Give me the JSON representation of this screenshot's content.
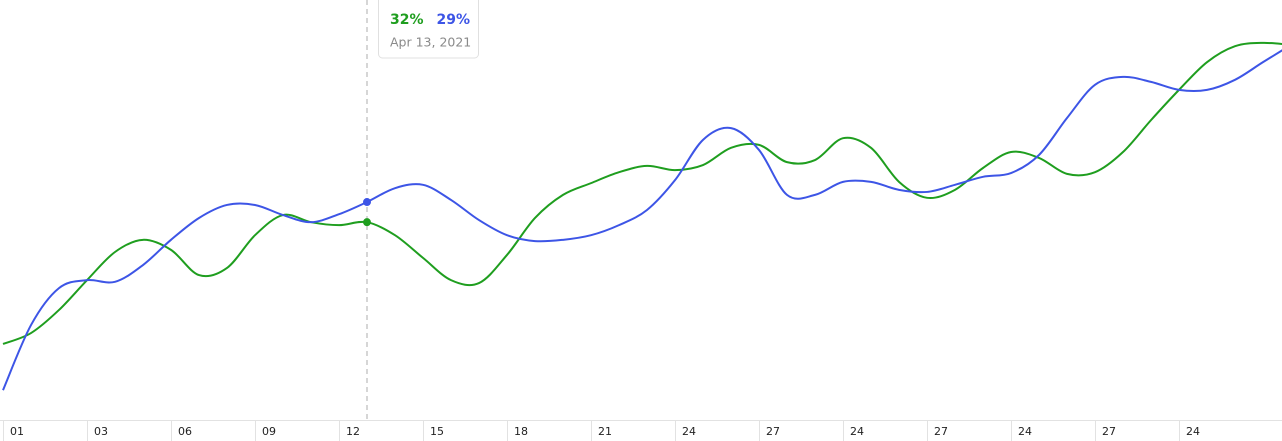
{
  "chart_data": {
    "type": "line",
    "categories": [
      "01",
      null,
      null,
      "03",
      null,
      null,
      "06",
      null,
      null,
      "09",
      null,
      null,
      "12",
      null,
      null,
      "15",
      null,
      null,
      "18",
      null,
      null,
      "21",
      null,
      null,
      "24",
      null,
      null,
      "27",
      null,
      null,
      "24",
      null,
      null,
      "27",
      null,
      null,
      "24",
      null,
      null,
      "27",
      null,
      null,
      "24",
      null,
      null,
      null,
      null
    ],
    "series": [
      {
        "name": "Green",
        "color": "#1f9e1f",
        "values": [
          18.1,
          20.7,
          26.2,
          33.3,
          40,
          42.9,
          40.5,
          34.5,
          36.2,
          44,
          48.8,
          47.1,
          46.4,
          47.1,
          44,
          38.6,
          33.3,
          32.6,
          39.3,
          48.1,
          53.6,
          56.4,
          59,
          60.5,
          59.5,
          60.7,
          64.8,
          65.5,
          61.4,
          61.9,
          67.1,
          64.8,
          56.7,
          52.9,
          54.8,
          60,
          63.8,
          62.4,
          58.6,
          59,
          63.8,
          71.4,
          78.6,
          85.2,
          89,
          89.8,
          89.3
        ]
      },
      {
        "name": "Blue",
        "color": "#3d55e6",
        "values": [
          7.1,
          22.6,
          31.4,
          33.3,
          32.9,
          36.9,
          42.9,
          48.1,
          51.2,
          51.2,
          48.8,
          47.1,
          49,
          51.9,
          55.2,
          56,
          52.4,
          47.6,
          44,
          42.6,
          42.9,
          44,
          46.4,
          50,
          57.1,
          66.7,
          69.5,
          64.3,
          53.6,
          53.6,
          56.7,
          56.7,
          54.8,
          54.3,
          56,
          57.9,
          58.8,
          63.1,
          71.9,
          79.8,
          81.7,
          80.5,
          78.6,
          78.6,
          81,
          85.2,
          89.3
        ]
      }
    ],
    "ylim": [
      0,
      100
    ],
    "tooltip": {
      "labels": [
        "32%",
        "29%"
      ],
      "date": "Apr 13, 2021"
    }
  }
}
